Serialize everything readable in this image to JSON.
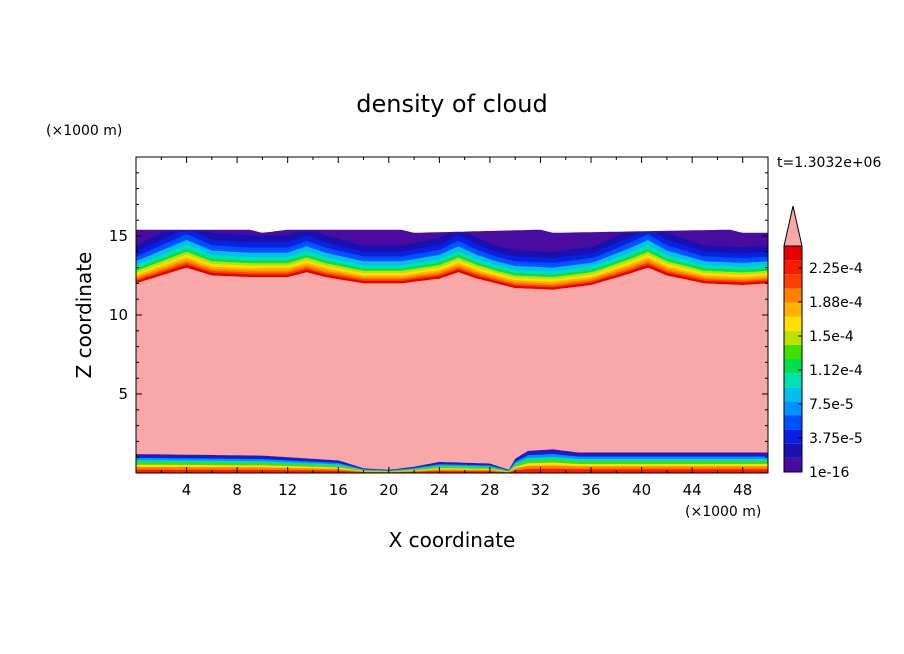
{
  "chart_data": {
    "type": "heatmap",
    "title": "density of cloud",
    "xlabel": "X coordinate",
    "ylabel": "Z coordinate",
    "x_unit": "(×1000 m)",
    "y_unit": "(×1000 m)",
    "time_label": "t=1.3032e+06",
    "xlim": [
      0,
      50
    ],
    "ylim": [
      0,
      20
    ],
    "x_ticks": [
      "4",
      "8",
      "12",
      "16",
      "20",
      "24",
      "28",
      "32",
      "36",
      "40",
      "44",
      "48"
    ],
    "y_ticks": [
      "5",
      "10",
      "15"
    ],
    "colorbar": {
      "labels": [
        "2.25e-4",
        "1.88e-4",
        "1.5e-4",
        "1.12e-4",
        "7.5e-5",
        "3.75e-5",
        "1e-16"
      ],
      "extend": "max",
      "colors": [
        "#4a0ca0",
        "#1a10b0",
        "#0a20e0",
        "#0050ff",
        "#0090ff",
        "#00c0f0",
        "#00e0b0",
        "#00e050",
        "#40e000",
        "#c0e000",
        "#ffe000",
        "#ffb000",
        "#ff8000",
        "#ff4000",
        "#ff1800",
        "#e80000"
      ],
      "over_color": "#f8a8a8"
    },
    "regions": {
      "cloud_core_color": "#f8a8a8",
      "top_layer_color": "#4a0ca0"
    },
    "cloud_top_profile": {
      "x": [
        0,
        2,
        4,
        6,
        9,
        12,
        13.5,
        15,
        18,
        21,
        24,
        25.5,
        27,
        30,
        33,
        36,
        39,
        40.5,
        42,
        45,
        48,
        50
      ],
      "z": [
        12.0,
        12.5,
        13.0,
        12.5,
        12.4,
        12.4,
        12.7,
        12.4,
        12.0,
        12.0,
        12.3,
        12.7,
        12.3,
        11.7,
        11.6,
        11.9,
        12.6,
        13.0,
        12.5,
        12.0,
        11.9,
        12.0
      ]
    },
    "layer_top": {
      "x": [
        0,
        9,
        10,
        12,
        21,
        22,
        32,
        33,
        47,
        48,
        50
      ],
      "z": [
        15.4,
        15.4,
        15.2,
        15.4,
        15.4,
        15.2,
        15.4,
        15.2,
        15.4,
        15.2,
        15.2
      ]
    },
    "cloud_base_profile": {
      "x": [
        0,
        10,
        16,
        18,
        20,
        22,
        24,
        28,
        29.5,
        30,
        31,
        33,
        35,
        40,
        50
      ],
      "z": [
        1.2,
        1.1,
        0.8,
        0.3,
        0.2,
        0.4,
        0.7,
        0.6,
        0.2,
        0.9,
        1.4,
        1.5,
        1.3,
        1.3,
        1.3
      ]
    }
  }
}
